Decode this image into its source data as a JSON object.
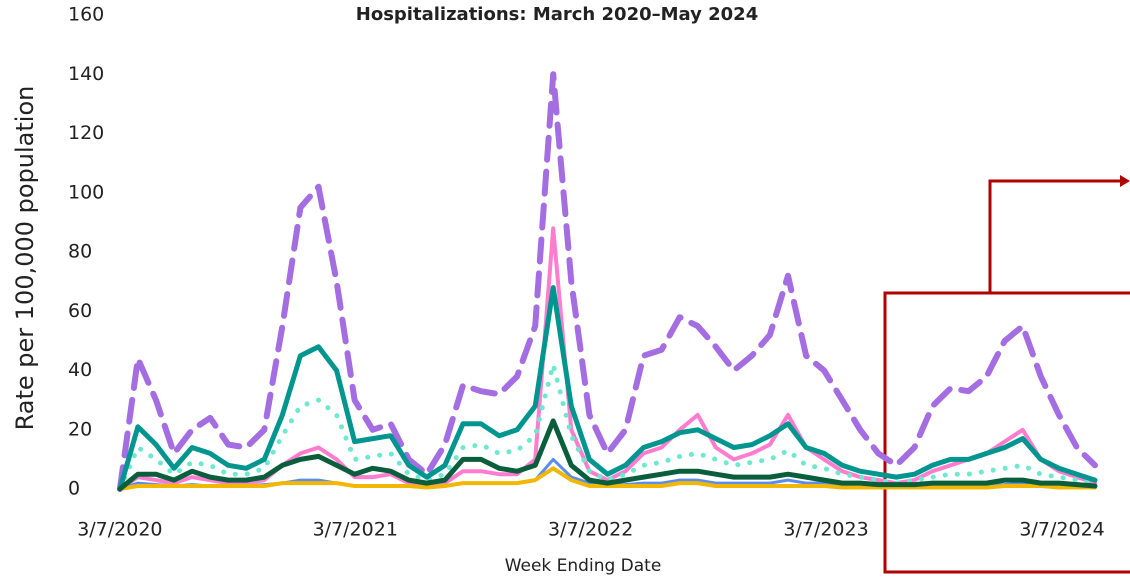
{
  "chart_data": {
    "type": "line",
    "title": "Hospitalizations: March 2020–May 2024",
    "xlabel": "Week Ending Date",
    "ylabel": "Rate per 100,000 population",
    "xlim": [
      "2020-03-01",
      "2024-05-11"
    ],
    "xticks": [
      {
        "value": "2020-03-07",
        "label": "3/7/2020"
      },
      {
        "value": "2021-03-07",
        "label": "3/7/2021"
      },
      {
        "value": "2022-03-07",
        "label": "3/7/2022"
      },
      {
        "value": "2023-03-07",
        "label": "3/7/2023"
      },
      {
        "value": "2024-03-07",
        "label": "3/7/2024"
      }
    ],
    "ylim": [
      0,
      160
    ],
    "yticks": [
      0,
      20,
      40,
      60,
      80,
      100,
      120,
      140,
      160
    ],
    "grid": false,
    "x": [
      "2020-03-07",
      "2020-04-04",
      "2020-05-02",
      "2020-05-30",
      "2020-06-27",
      "2020-07-25",
      "2020-08-22",
      "2020-09-19",
      "2020-10-17",
      "2020-11-14",
      "2020-12-12",
      "2021-01-09",
      "2021-02-06",
      "2021-03-06",
      "2021-04-03",
      "2021-05-01",
      "2021-05-29",
      "2021-06-26",
      "2021-07-24",
      "2021-08-21",
      "2021-09-18",
      "2021-10-16",
      "2021-11-13",
      "2021-12-11",
      "2022-01-08",
      "2022-02-05",
      "2022-03-05",
      "2022-04-02",
      "2022-04-30",
      "2022-05-28",
      "2022-06-25",
      "2022-07-23",
      "2022-08-20",
      "2022-09-17",
      "2022-10-15",
      "2022-11-12",
      "2022-12-10",
      "2023-01-07",
      "2023-02-04",
      "2023-03-04",
      "2023-04-01",
      "2023-04-29",
      "2023-05-27",
      "2023-06-24",
      "2023-07-22",
      "2023-08-19",
      "2023-09-16",
      "2023-10-14",
      "2023-11-11",
      "2023-12-09",
      "2024-01-06",
      "2024-02-03",
      "2024-03-02",
      "2024-03-30",
      "2024-04-27"
    ],
    "series": [
      {
        "color": "#ff7ccf",
        "style": "solid",
        "width": 4,
        "values": [
          0,
          4,
          3,
          2,
          4,
          3,
          2,
          2,
          3,
          8,
          12,
          14,
          10,
          4,
          4,
          5,
          2,
          1,
          2,
          6,
          6,
          5,
          5,
          10,
          88,
          20,
          6,
          3,
          6,
          12,
          14,
          20,
          25,
          14,
          10,
          12,
          15,
          25,
          14,
          10,
          6,
          4,
          3,
          2,
          3,
          6,
          8,
          10,
          12,
          16,
          20,
          10,
          6,
          4,
          2
        ]
      },
      {
        "color": "#6fe8d0",
        "style": "dotted",
        "width": 5,
        "values": [
          0,
          14,
          10,
          5,
          9,
          8,
          5,
          5,
          7,
          18,
          28,
          30,
          25,
          10,
          11,
          12,
          5,
          3,
          5,
          14,
          15,
          12,
          13,
          18,
          42,
          18,
          6,
          3,
          5,
          8,
          9,
          11,
          12,
          10,
          8,
          9,
          10,
          13,
          8,
          7,
          5,
          4,
          3,
          2,
          3,
          4,
          5,
          5,
          6,
          7,
          8,
          5,
          4,
          3,
          2
        ]
      },
      {
        "color": "#5b8def",
        "style": "solid",
        "width": 3,
        "values": [
          0,
          2,
          1.5,
          1,
          1.5,
          1,
          1,
          1,
          1.5,
          2,
          3,
          3,
          2,
          1,
          1,
          1,
          1,
          0.5,
          1,
          2,
          2,
          2,
          2,
          3,
          10,
          4,
          2,
          1,
          1.5,
          2,
          2,
          3,
          3,
          2,
          2,
          2,
          2,
          3,
          2,
          2,
          1,
          1,
          1,
          1,
          1,
          1,
          1,
          1,
          1,
          1.5,
          2,
          1.5,
          1,
          1,
          0.5
        ]
      },
      {
        "color": "#f2b705",
        "style": "solid",
        "width": 4,
        "values": [
          0,
          1,
          1,
          1,
          1,
          1,
          1,
          1,
          1,
          2,
          2,
          2,
          2,
          1,
          1,
          1,
          1,
          0.5,
          1,
          2,
          2,
          2,
          2,
          3,
          7,
          3,
          1,
          1,
          1,
          1,
          1,
          2,
          2,
          1,
          1,
          1,
          1,
          1,
          1,
          1,
          0.5,
          0.5,
          0.5,
          0.5,
          0.5,
          0.5,
          0.5,
          0.5,
          0.5,
          1,
          1,
          1,
          0.5,
          0.5,
          0.5
        ]
      },
      {
        "color": "#a56de2",
        "style": "dashed",
        "width": 6,
        "values": [
          0,
          44,
          30,
          12,
          20,
          24,
          15,
          14,
          20,
          55,
          95,
          102,
          70,
          30,
          20,
          22,
          10,
          5,
          15,
          35,
          33,
          32,
          38,
          55,
          140,
          70,
          25,
          12,
          20,
          45,
          47,
          58,
          55,
          48,
          40,
          45,
          52,
          72,
          45,
          40,
          30,
          20,
          12,
          8,
          14,
          28,
          34,
          33,
          38,
          50,
          55,
          38,
          25,
          14,
          8
        ]
      },
      {
        "color": "#00968f",
        "style": "solid",
        "width": 5,
        "values": [
          0,
          21,
          15,
          7,
          14,
          12,
          8,
          7,
          10,
          25,
          45,
          48,
          40,
          16,
          17,
          18,
          8,
          4,
          8,
          22,
          22,
          18,
          20,
          28,
          68,
          28,
          10,
          5,
          8,
          14,
          16,
          19,
          20,
          17,
          14,
          15,
          18,
          22,
          14,
          12,
          8,
          6,
          5,
          4,
          5,
          8,
          10,
          10,
          12,
          14,
          17,
          10,
          7,
          5,
          3
        ]
      },
      {
        "color": "#0b5e3c",
        "style": "solid",
        "width": 5,
        "values": [
          0,
          5,
          5,
          3,
          6,
          4,
          3,
          3,
          4,
          8,
          10,
          11,
          8,
          5,
          7,
          6,
          3,
          2,
          3,
          10,
          10,
          7,
          6,
          8,
          23,
          8,
          3,
          2,
          3,
          4,
          5,
          6,
          6,
          5,
          4,
          4,
          4,
          5,
          4,
          3,
          2,
          2,
          1.5,
          1.5,
          1.5,
          2,
          2,
          2,
          2,
          3,
          3,
          2,
          2,
          1.5,
          1
        ]
      }
    ]
  }
}
